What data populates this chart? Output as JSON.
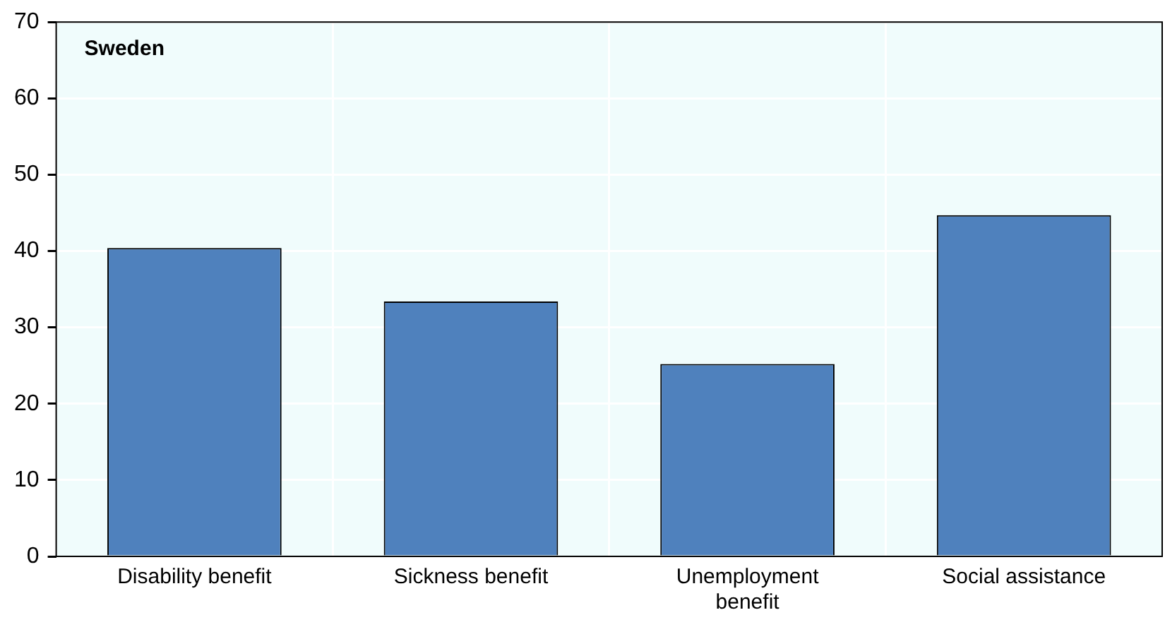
{
  "chart_data": {
    "type": "bar",
    "title": "Sweden",
    "categories": [
      "Disability benefit",
      "Sickness benefit",
      "Unemployment benefit",
      "Social assistance"
    ],
    "values": [
      40.4,
      33.4,
      25.2,
      44.7
    ],
    "color": "#4f81bd",
    "ylim": [
      0,
      70
    ],
    "yticks": [
      0,
      10,
      20,
      30,
      40,
      50,
      60,
      70
    ],
    "grid": true
  }
}
